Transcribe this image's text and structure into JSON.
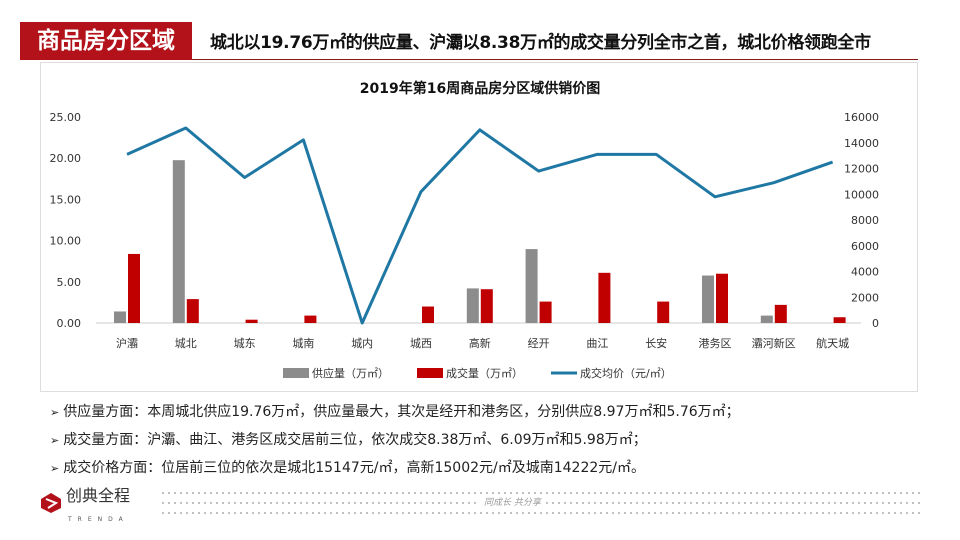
{
  "header": {
    "tag": "商品房分区域",
    "headline": "城北以19.76万㎡的供应量、沪灞以8.38万㎡的成交量分列全市之首，城北价格领跑全市"
  },
  "chart_data": {
    "type": "bar+line",
    "title": "2019年第16周商品房分区域供销价图",
    "categories": [
      "沪灞",
      "城北",
      "城东",
      "城南",
      "城内",
      "城西",
      "高新",
      "经开",
      "曲江",
      "长安",
      "港务区",
      "灞河新区",
      "航天城"
    ],
    "series": [
      {
        "name": "供应量（万㎡）",
        "type": "bar",
        "axis": "left",
        "color": "#8c8c8c",
        "values": [
          1.4,
          19.76,
          0,
          0,
          0,
          0,
          4.2,
          8.97,
          0,
          0,
          5.76,
          0.9,
          0
        ]
      },
      {
        "name": "成交量（万㎡）",
        "type": "bar",
        "axis": "left",
        "color": "#c00000",
        "values": [
          8.38,
          2.9,
          0.4,
          0.9,
          0,
          2.0,
          4.1,
          2.6,
          6.09,
          2.6,
          5.98,
          2.2,
          0.7
        ]
      },
      {
        "name": "成交均价（元/㎡）",
        "type": "line",
        "axis": "right",
        "color": "#1f77a4",
        "values": [
          13100,
          15147,
          11300,
          14222,
          0,
          10200,
          15002,
          11800,
          13100,
          13100,
          9800,
          10900,
          12500
        ]
      }
    ],
    "ylim_left": [
      0,
      25
    ],
    "yticks_left": [
      "0.00",
      "5.00",
      "10.00",
      "15.00",
      "20.00",
      "25.00"
    ],
    "ylim_right": [
      0,
      16000
    ],
    "yticks_right": [
      "0",
      "2000",
      "4000",
      "6000",
      "8000",
      "10000",
      "12000",
      "14000",
      "16000"
    ],
    "grid": false,
    "legend": "bottom"
  },
  "bullets": [
    "供应量方面：本周城北供应19.76万㎡，供应量最大，其次是经开和港务区，分别供应8.97万㎡和5.76万㎡；",
    "成交量方面：沪灞、曲江、港务区成交居前三位，依次成交8.38万㎡、6.09万㎡和5.98万㎡；",
    "成交价格方面：位居前三位的依次是城北15147元/㎡，高新15002元/㎡及城南14222元/㎡。"
  ],
  "footer": {
    "logo": "创典全程",
    "logo_sub": "TRENDA",
    "slogan": "同成长 共分享"
  }
}
